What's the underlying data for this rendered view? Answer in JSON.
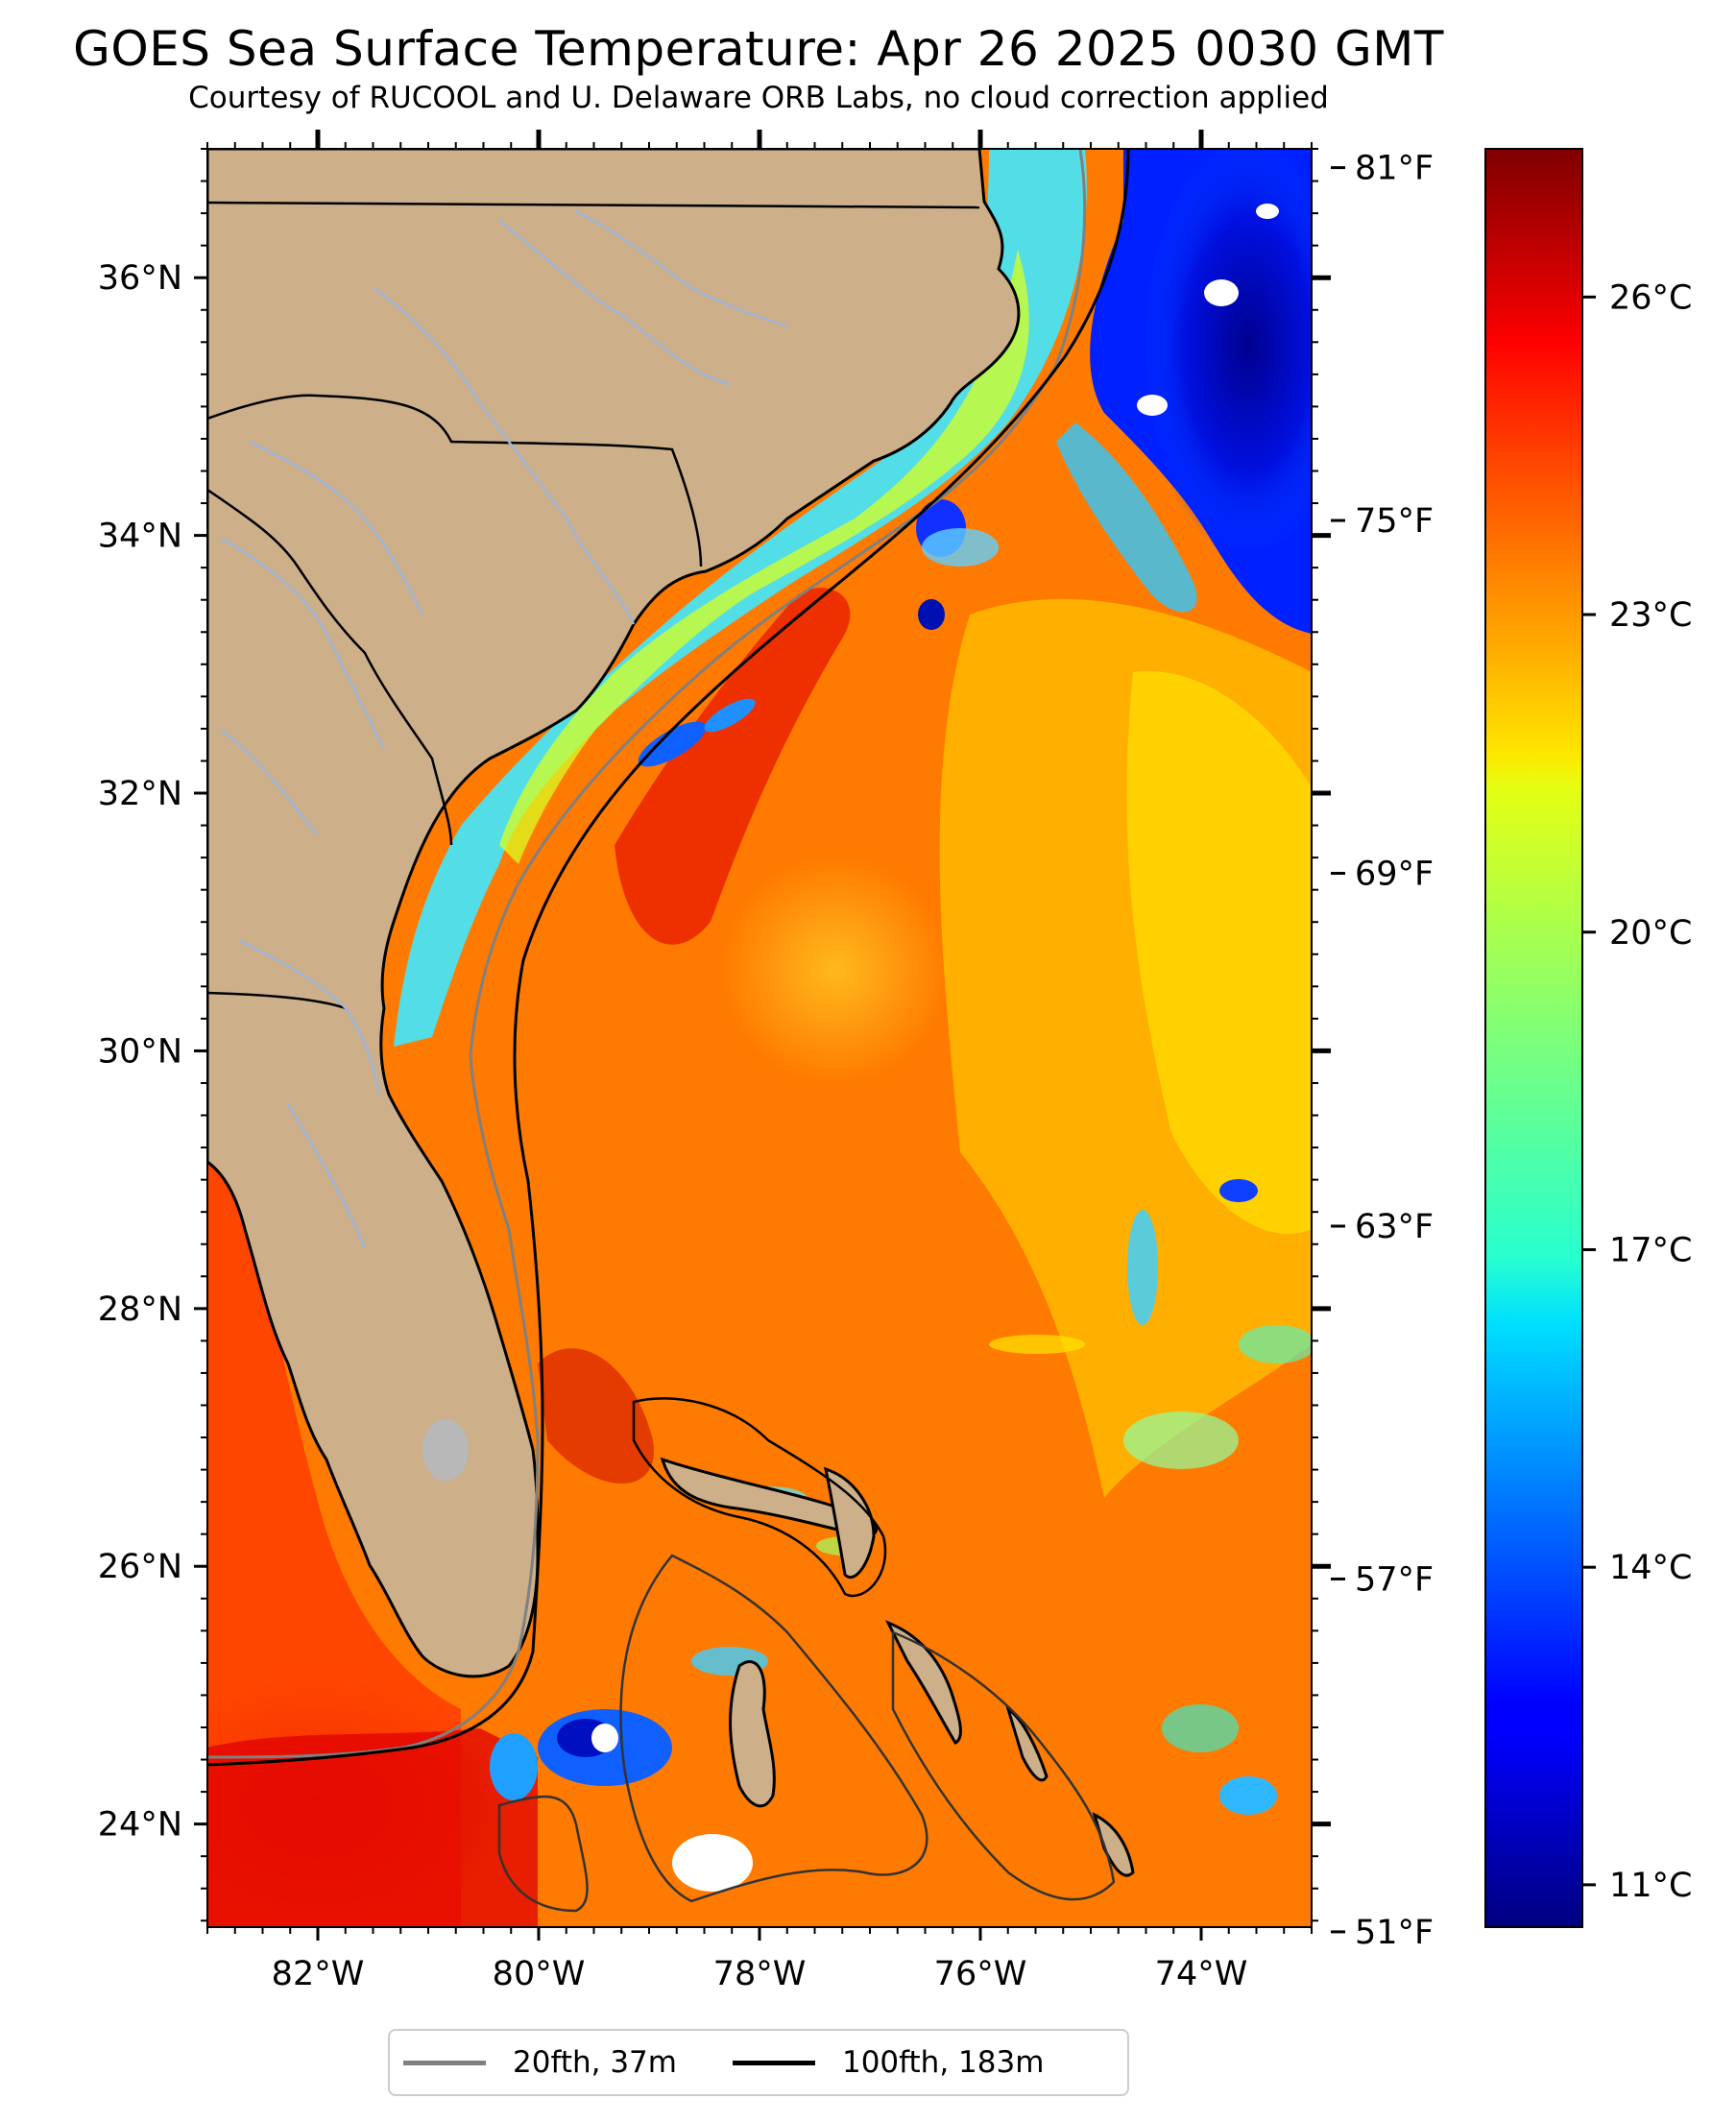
{
  "title": "GOES Sea Surface Temperature: Apr 26 2025 0030 GMT",
  "subtitle": "Courtesy of RUCOOL and U. Delaware ORB Labs, no cloud correction applied",
  "map": {
    "extent": {
      "lon": [
        -83.0,
        -73.0
      ],
      "lat": [
        23.2,
        37.0
      ]
    },
    "land_color": "#cdb08a",
    "cloud_mask_color": "#ffffff",
    "lake_color": "#b8b8b8",
    "latitude_labels": [
      "36°N",
      "34°N",
      "32°N",
      "30°N",
      "28°N",
      "26°N",
      "24°N"
    ],
    "latitude_values": [
      36,
      34,
      32,
      30,
      28,
      26,
      24
    ],
    "longitude_labels": [
      "82°W",
      "80°W",
      "78°W",
      "76°W",
      "74°W"
    ],
    "longitude_values": [
      -82,
      -80,
      -78,
      -76,
      -74
    ]
  },
  "fahrenheit_axis": {
    "labels": [
      "81°F",
      "75°F",
      "69°F",
      "63°F",
      "57°F",
      "51°F"
    ],
    "values": [
      81,
      75,
      69,
      63,
      57,
      51
    ]
  },
  "colorbar": {
    "colormap": "jet",
    "range_c": [
      10.6,
      27.4
    ],
    "labels": [
      "26°C",
      "23°C",
      "20°C",
      "17°C",
      "14°C",
      "11°C"
    ],
    "values": [
      26,
      23,
      20,
      17,
      14,
      11
    ]
  },
  "legend": [
    {
      "label": "20fth, 37m",
      "color": "#808080"
    },
    {
      "label": "100fth, 183m",
      "color": "#000000"
    }
  ]
}
